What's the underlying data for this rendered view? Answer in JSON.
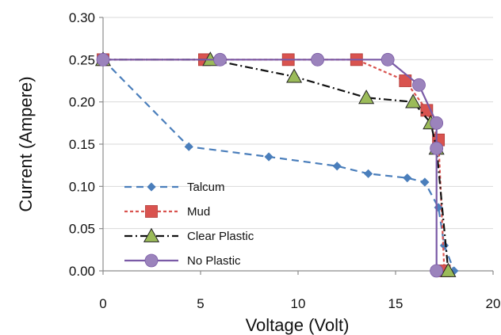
{
  "chart_data": {
    "type": "line",
    "title": "",
    "xlabel": "Voltage (Volt)",
    "ylabel": "Current (Ampere)",
    "xlim": [
      0,
      20
    ],
    "ylim": [
      0,
      0.3
    ],
    "x_ticks": [
      "0",
      "5",
      "10",
      "15",
      "20"
    ],
    "y_ticks": [
      "0.00",
      "0.05",
      "0.10",
      "0.15",
      "0.20",
      "0.25",
      "0.30"
    ],
    "grid": "horizontal",
    "legend_position": "bottom-left",
    "series": [
      {
        "name": "Talcum",
        "color": "#4a7ebb",
        "dash": "dashed",
        "marker": "diamond",
        "x": [
          0,
          4.4,
          8.5,
          12,
          13.6,
          15.6,
          16.5,
          17.2,
          17.5,
          18
        ],
        "y": [
          0.25,
          0.147,
          0.135,
          0.124,
          0.115,
          0.11,
          0.105,
          0.075,
          0.03,
          0
        ]
      },
      {
        "name": "Mud",
        "color": "#d9534f",
        "dash": "dotted",
        "marker": "square",
        "x": [
          0,
          5.2,
          9.5,
          13,
          15.5,
          16.6,
          17.2,
          17.5
        ],
        "y": [
          0.25,
          0.25,
          0.25,
          0.25,
          0.225,
          0.19,
          0.155,
          0
        ]
      },
      {
        "name": "Clear Plastic",
        "color": "#111111",
        "dash": "dashdot",
        "marker": "triangle",
        "x": [
          0,
          5.5,
          9.8,
          13.5,
          15.9,
          16.8,
          17.1,
          17.7
        ],
        "y": [
          0.25,
          0.25,
          0.23,
          0.205,
          0.2,
          0.175,
          0.145,
          0
        ]
      },
      {
        "name": "No Plastic",
        "color": "#7a5aa6",
        "dash": "solid",
        "marker": "circle",
        "x": [
          0,
          6,
          11,
          14.6,
          16.2,
          17.1,
          17.1,
          17.1
        ],
        "y": [
          0.25,
          0.25,
          0.25,
          0.25,
          0.22,
          0.175,
          0.145,
          0
        ]
      }
    ]
  }
}
